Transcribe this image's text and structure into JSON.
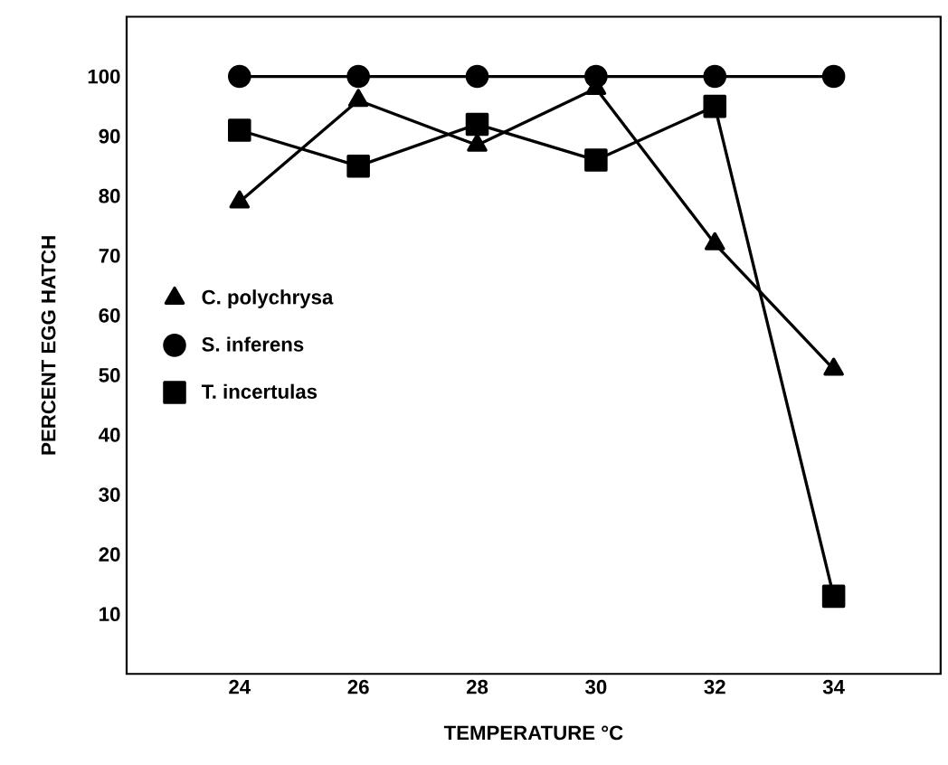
{
  "chart_data": {
    "type": "line",
    "xlabel": "TEMPERATURE °C",
    "ylabel": "PERCENT EGG HATCH",
    "x": [
      24,
      26,
      28,
      30,
      32,
      34
    ],
    "series": [
      {
        "name": "C. polychrysa",
        "color": "#000000",
        "marker": "triangle",
        "values": [
          79,
          96,
          88.5,
          98,
          72,
          51
        ]
      },
      {
        "name": "S. inferens",
        "color": "#000000",
        "marker": "circle",
        "values": [
          100,
          100,
          100,
          100,
          100,
          100
        ]
      },
      {
        "name": "T. incertulas",
        "color": "#000000",
        "marker": "square",
        "values": [
          91,
          85,
          92,
          86,
          95,
          13
        ]
      }
    ],
    "xlim": [
      22.1,
      35.8
    ],
    "ylim": [
      0,
      110
    ],
    "xticks": [
      24,
      26,
      28,
      30,
      32,
      34
    ],
    "yticks": [
      10,
      20,
      30,
      40,
      50,
      60,
      70,
      80,
      90,
      100
    ],
    "line_style": "solid",
    "grid": false,
    "legend": "left"
  }
}
